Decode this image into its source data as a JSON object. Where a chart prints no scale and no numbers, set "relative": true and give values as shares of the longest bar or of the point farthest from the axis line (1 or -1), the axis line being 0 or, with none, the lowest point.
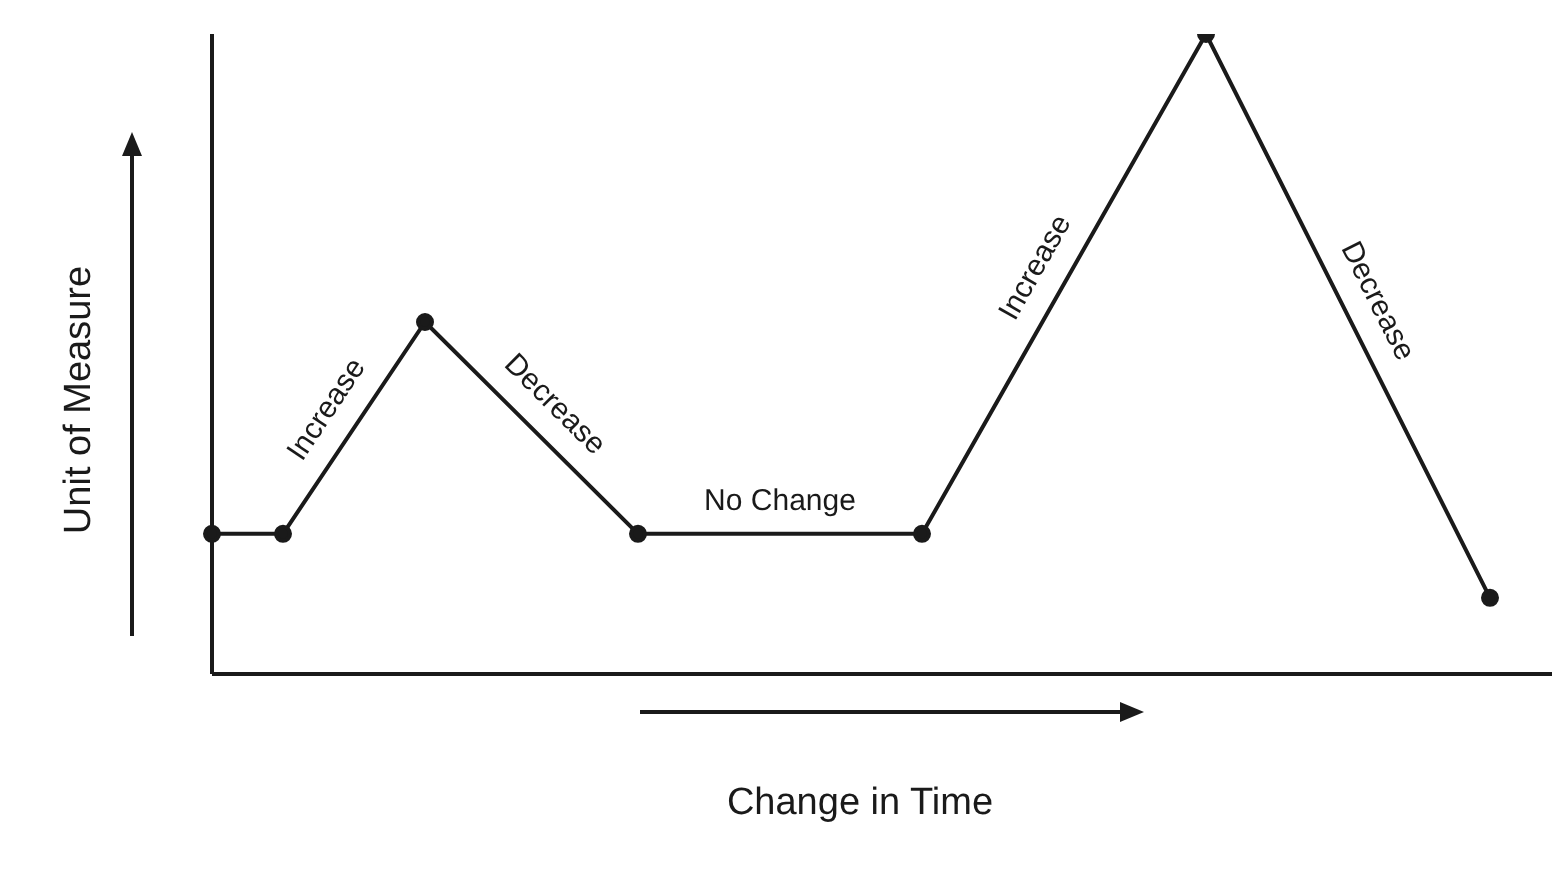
{
  "chart_data": {
    "type": "line",
    "relative": true,
    "xlabel": "Change in Time",
    "ylabel": "Unit of Measure",
    "categories": [
      null,
      null,
      null,
      null,
      null,
      null,
      null,
      null,
      null,
      null,
      null,
      null,
      null,
      null,
      null,
      null,
      null,
      null,
      null
    ],
    "series": [
      {
        "color": "#1a1a1a",
        "values": [
          0.219,
          0.219,
          null,
          0.55,
          null,
          null,
          0.219,
          null,
          null,
          null,
          0.219,
          null,
          null,
          null,
          1,
          null,
          null,
          null,
          0.119
        ]
      }
    ],
    "marker": "circle",
    "line_style": "solid",
    "grid": false,
    "annotations": [
      "Increase",
      "Decrease",
      "No Change",
      "Increase",
      "Decrease"
    ]
  }
}
